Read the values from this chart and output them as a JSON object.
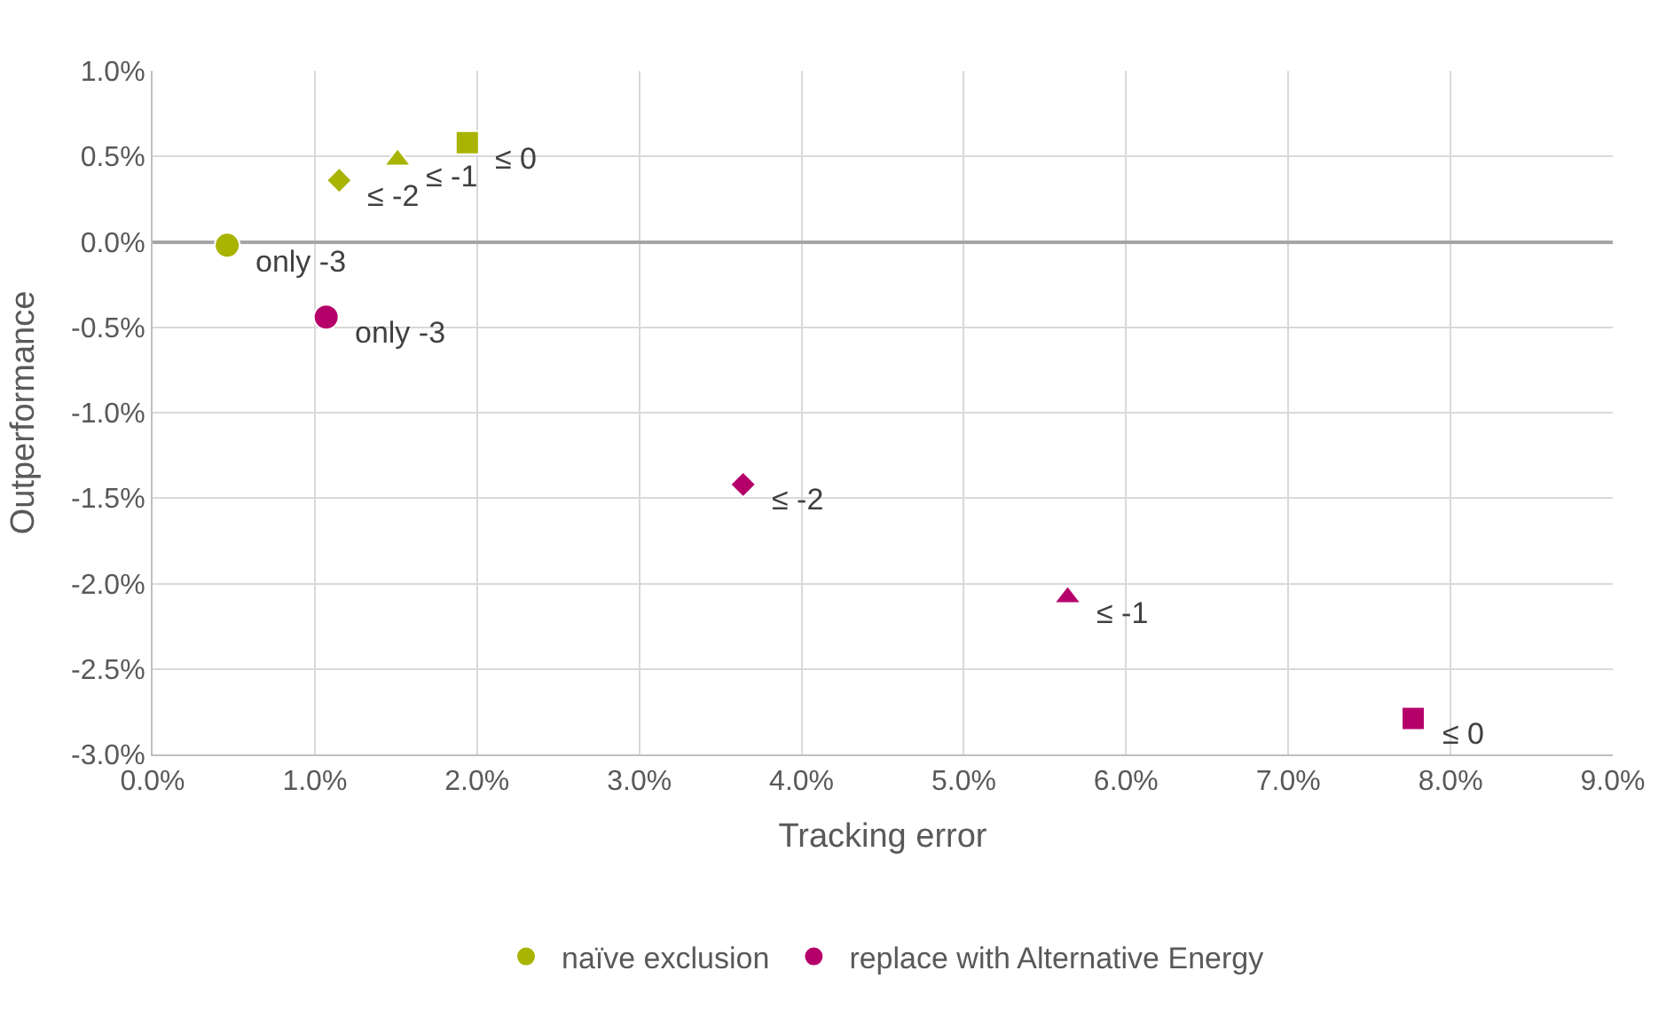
{
  "chart_data": {
    "type": "scatter",
    "xlabel": "Tracking error",
    "ylabel": "Outperformance",
    "xlim": [
      0,
      9
    ],
    "ylim": [
      -3,
      1
    ],
    "xticks": [
      {
        "value": 0,
        "label": "0.0%"
      },
      {
        "value": 1,
        "label": "1.0%"
      },
      {
        "value": 2,
        "label": "2.0%"
      },
      {
        "value": 3,
        "label": "3.0%"
      },
      {
        "value": 4,
        "label": "4.0%"
      },
      {
        "value": 5,
        "label": "5.0%"
      },
      {
        "value": 6,
        "label": "6.0%"
      },
      {
        "value": 7,
        "label": "7.0%"
      },
      {
        "value": 8,
        "label": "8.0%"
      },
      {
        "value": 9,
        "label": "9.0%"
      }
    ],
    "yticks": [
      {
        "value": -3,
        "label": "-3.0%"
      },
      {
        "value": -2.5,
        "label": "-2.5%"
      },
      {
        "value": -2,
        "label": "-2.0%"
      },
      {
        "value": -1.5,
        "label": "-1.5%"
      },
      {
        "value": -1,
        "label": "-1.0%"
      },
      {
        "value": -0.5,
        "label": "-0.5%"
      },
      {
        "value": 0,
        "label": "0.0%"
      },
      {
        "value": 0.5,
        "label": "0.5%"
      },
      {
        "value": 1,
        "label": "1.0%"
      }
    ],
    "grid": true,
    "legend": "bottom",
    "annotations": [
      {
        "text": "only -3",
        "x": 0.46,
        "y": -0.02
      },
      {
        "text": "≤ -2",
        "x": 1.15,
        "y": 0.36
      },
      {
        "text": "≤ -1",
        "x": 1.51,
        "y": 0.48
      },
      {
        "text": "≤ 0",
        "x": 1.94,
        "y": 0.58
      },
      {
        "text": "only -3",
        "x": 1.07,
        "y": -0.44
      },
      {
        "text": "≤ -2",
        "x": 3.64,
        "y": -1.42
      },
      {
        "text": "≤ -1",
        "x": 5.64,
        "y": -2.08
      },
      {
        "text": "≤ 0",
        "x": 7.77,
        "y": -2.79
      }
    ],
    "series": [
      {
        "name": "naïve exclusion",
        "color": "#a8b400",
        "x": [
          0.46,
          1.15,
          1.51,
          1.94
        ],
        "values": [
          -0.02,
          0.36,
          0.48,
          0.58
        ],
        "marker": [
          "circle",
          "diamond",
          "triangle",
          "square"
        ]
      },
      {
        "name": "replace with Alternative Energy",
        "color": "#b5006a",
        "x": [
          1.07,
          3.64,
          5.64,
          7.77
        ],
        "values": [
          -0.44,
          -1.42,
          -2.08,
          -2.79
        ],
        "marker": [
          "circle",
          "diamond",
          "triangle",
          "square"
        ]
      }
    ]
  }
}
